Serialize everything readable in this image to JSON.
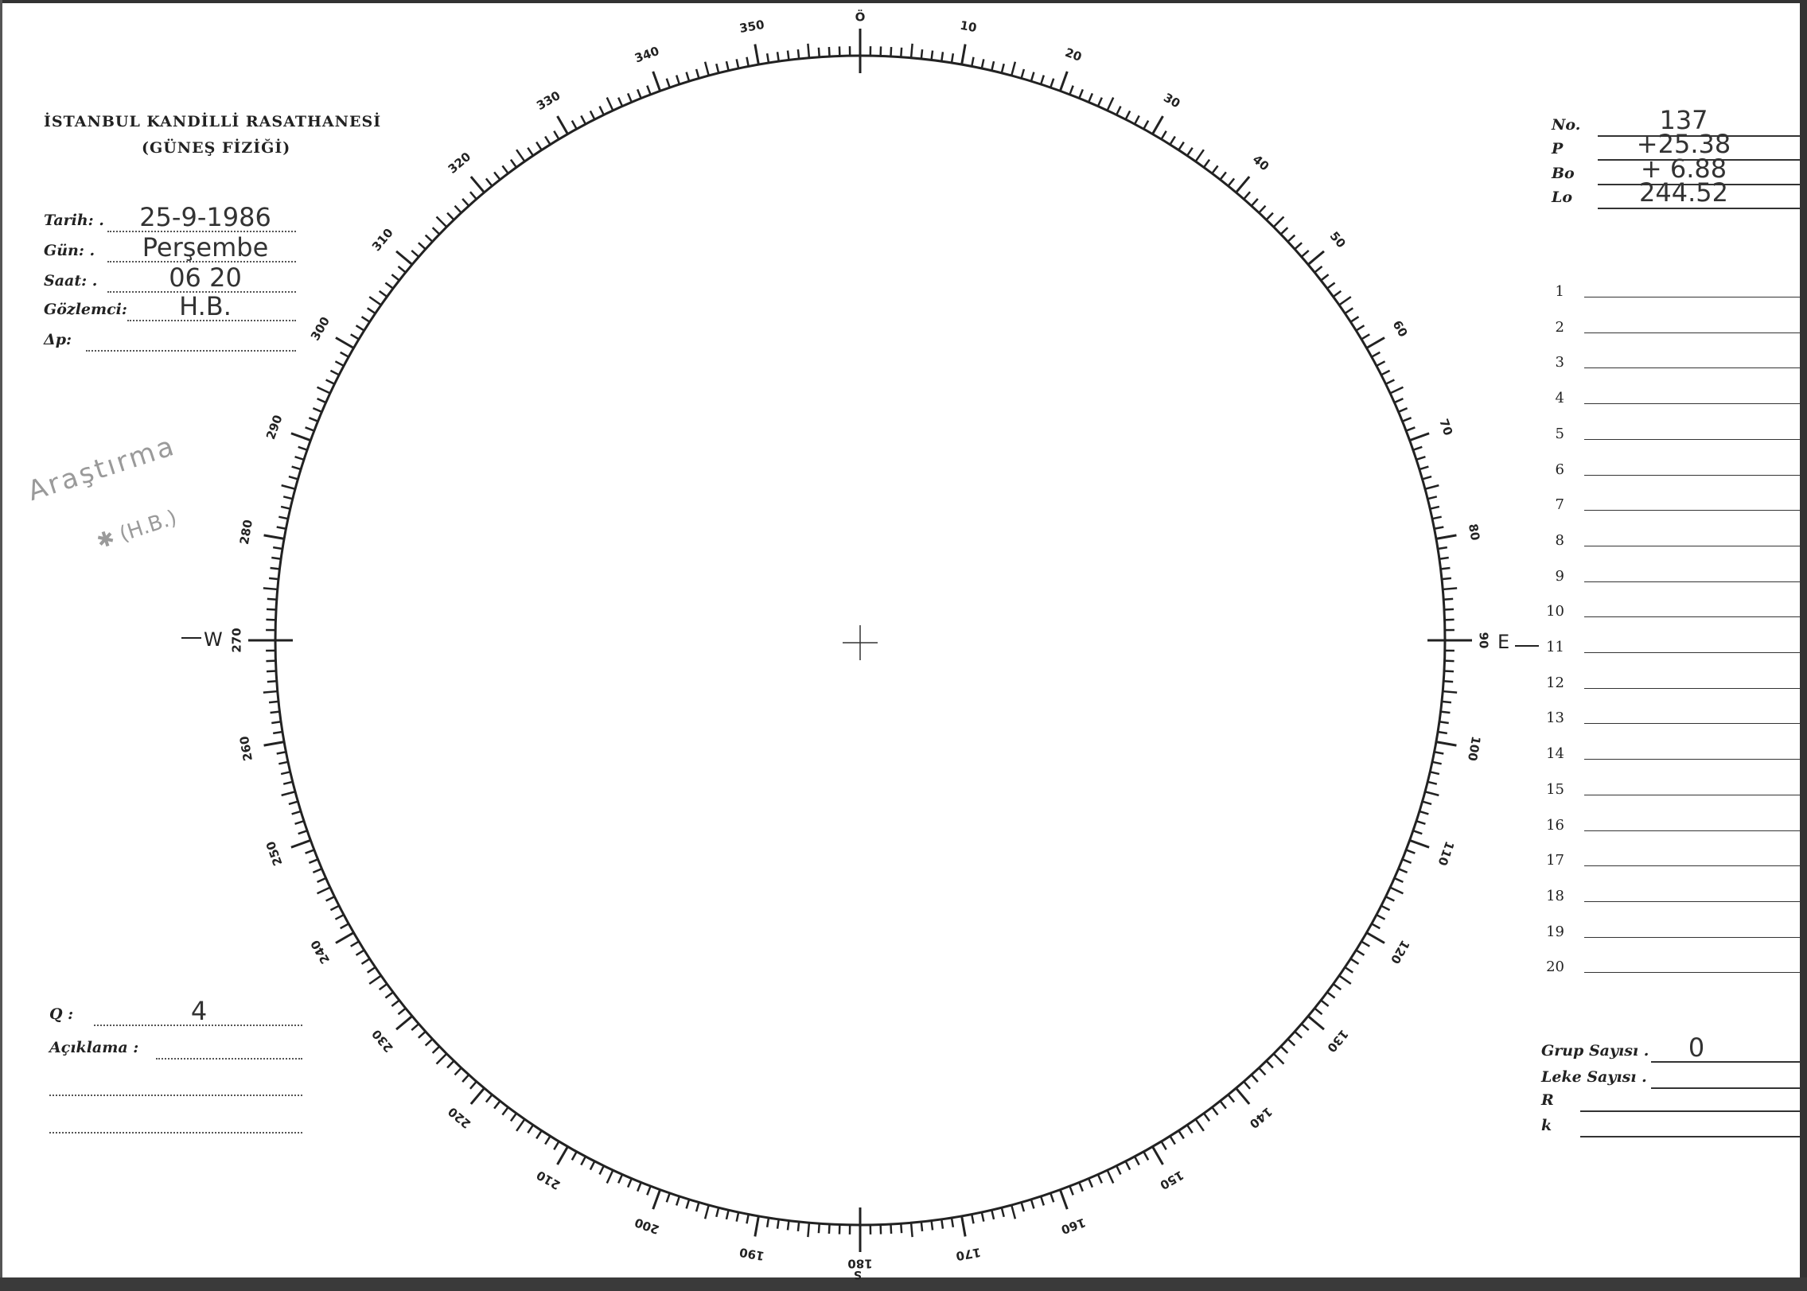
{
  "header": {
    "institution": "İSTANBUL KANDİLLİ RASATHANESİ",
    "department": "(GÜNEŞ FİZİĞİ)"
  },
  "observation": [
    {
      "label": "Tarih: .",
      "value": "25-9-1986"
    },
    {
      "label": "Gün: .",
      "value": "Perşembe"
    },
    {
      "label": "Saat: .",
      "value": "06 20"
    },
    {
      "label": "Gözlemci:",
      "value": "H.B."
    },
    {
      "label": "Δp:",
      "value": ""
    }
  ],
  "note": {
    "line1": "Araştırma",
    "line2": "✱ (H.B.)"
  },
  "quality": {
    "label": "Q :",
    "value": "4"
  },
  "remarks": {
    "label": "Açıklama :"
  },
  "parameters": [
    {
      "label": "No.",
      "value": "137"
    },
    {
      "label": "P",
      "value": "+25.38"
    },
    {
      "label": "Bo",
      "value": "+ 6.88"
    },
    {
      "label": "Lo",
      "value": "244.52"
    }
  ],
  "rows": [
    "1",
    "2",
    "3",
    "4",
    "5",
    "6",
    "7",
    "8",
    "9",
    "10",
    "11",
    "12",
    "13",
    "14",
    "15",
    "16",
    "17",
    "18",
    "19",
    "20"
  ],
  "counts": [
    {
      "label": "Grup Sayısı .",
      "value": "0"
    },
    {
      "label": "Leke Sayısı .",
      "value": ""
    },
    {
      "label": "R",
      "value": ""
    },
    {
      "label": "k",
      "value": ""
    }
  ],
  "disk": {
    "scale_labels": [
      "Ö",
      "10",
      "20",
      "30",
      "40",
      "50",
      "60",
      "70",
      "80",
      "90",
      "100",
      "110",
      "120",
      "130",
      "140",
      "150",
      "160",
      "170",
      "180",
      "190",
      "200",
      "210",
      "220",
      "230",
      "240",
      "250",
      "260",
      "270",
      "280",
      "290",
      "300",
      "310",
      "320",
      "330",
      "340",
      "350"
    ],
    "east": "E",
    "west": "W",
    "south": "S"
  }
}
